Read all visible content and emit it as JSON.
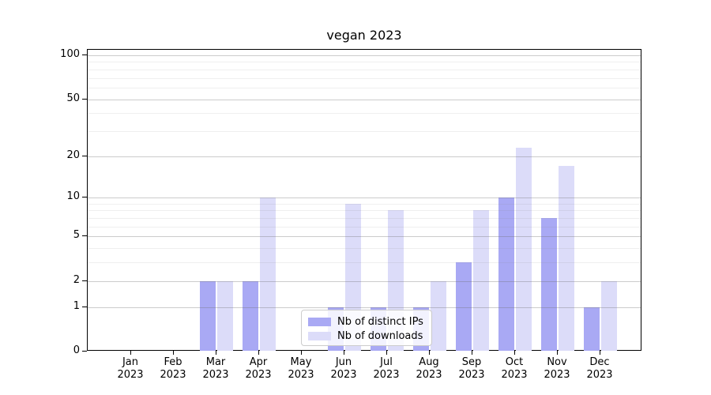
{
  "chart_data": {
    "type": "bar",
    "title": "vegan 2023",
    "categories": [
      "Jan 2023",
      "Feb 2023",
      "Mar 2023",
      "Apr 2023",
      "May 2023",
      "Jun 2023",
      "Jul 2023",
      "Aug 2023",
      "Sep 2023",
      "Oct 2023",
      "Nov 2023",
      "Dec 2023"
    ],
    "series": [
      {
        "name": "Nb of distinct IPs",
        "color": "#a9a9f4",
        "values": [
          0,
          0,
          2,
          2,
          0,
          1,
          1,
          1,
          3,
          10,
          7,
          1
        ]
      },
      {
        "name": "Nb of downloads",
        "color": "#dcdcf9",
        "values": [
          0,
          0,
          2,
          10,
          0,
          9,
          8,
          2,
          8,
          23,
          17,
          2
        ]
      }
    ],
    "xlabel": "",
    "ylabel": "",
    "yscale": "log10(1+x)",
    "yticks": [
      0,
      1,
      2,
      5,
      10,
      20,
      50,
      100
    ],
    "minor_gridlines": [
      3,
      4,
      6,
      7,
      8,
      9,
      30,
      40,
      60,
      70,
      80,
      90
    ],
    "ylim": [
      0,
      109
    ],
    "grid": true,
    "legend_position": "lower-center-inside"
  }
}
